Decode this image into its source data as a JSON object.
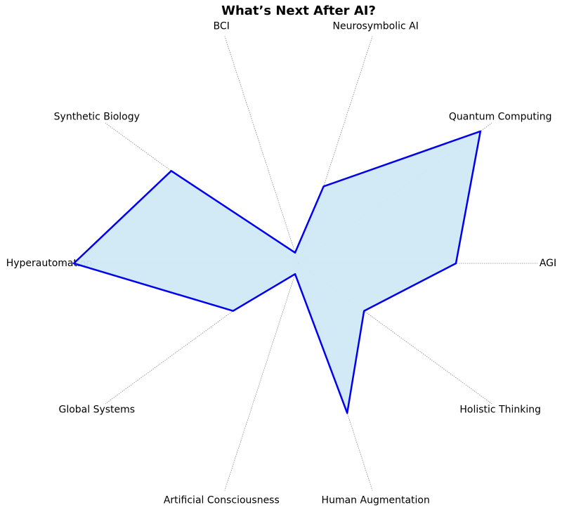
{
  "chart_data": {
    "type": "radar",
    "title": "What’s Next After AI?",
    "categories": [
      "AGI",
      "Quantum Computing",
      "Neurosymbolic AI",
      "BCI",
      "Synthetic Biology",
      "Hyperautomation",
      "Global Systems",
      "Artificial Consciousness",
      "Human Augmentation",
      "Holistic Thinking"
    ],
    "values": [
      7,
      10,
      3.6,
      0.5,
      7,
      10,
      3.6,
      0.5,
      7,
      3.6
    ],
    "rlim": [
      0,
      10
    ],
    "fill_color": "#cfe9f5",
    "color": "#0000ee"
  }
}
